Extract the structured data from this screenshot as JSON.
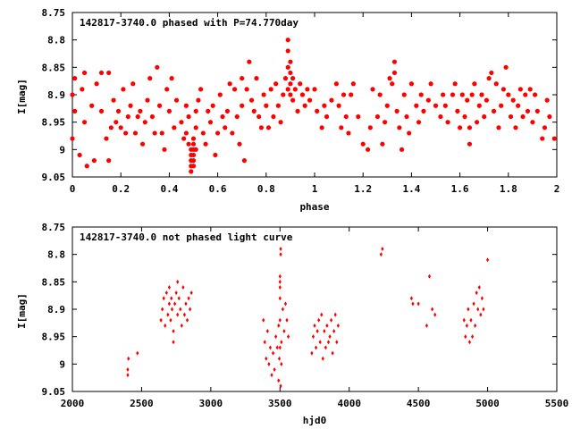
{
  "chart_data": [
    {
      "type": "scatter",
      "title": "142817-3740.0 phased with P=74.770day",
      "xlabel": "phase",
      "ylabel": "I[mag]",
      "xlim": [
        0,
        2
      ],
      "ylim": [
        9.05,
        8.75
      ],
      "y_inverted": true,
      "grid": false,
      "legend": "none",
      "marker": "filled-circle",
      "color": "#ff0000",
      "xticks": [
        0,
        0.2,
        0.4,
        0.6,
        0.8,
        1,
        1.2,
        1.4,
        1.6,
        1.8,
        2
      ],
      "xtick_labels": [
        "0",
        "0.2",
        "0.4",
        "0.6",
        "0.8",
        "1",
        "1.2",
        "1.4",
        "1.6",
        "1.8",
        "2"
      ],
      "yticks": [
        8.75,
        8.8,
        8.85,
        8.9,
        8.95,
        9,
        9.05
      ],
      "ytick_labels": [
        "8.75",
        "8.8",
        "8.85",
        "8.9",
        "8.95",
        "9",
        "9.05"
      ],
      "points": [
        [
          0.0,
          8.9
        ],
        [
          0.0,
          8.98
        ],
        [
          0.01,
          8.93
        ],
        [
          0.01,
          8.87
        ],
        [
          0.03,
          9.01
        ],
        [
          0.04,
          8.89
        ],
        [
          0.05,
          8.86
        ],
        [
          0.05,
          8.95
        ],
        [
          0.06,
          9.03
        ],
        [
          0.08,
          8.92
        ],
        [
          0.09,
          9.02
        ],
        [
          0.1,
          8.88
        ],
        [
          0.12,
          8.86
        ],
        [
          0.12,
          8.93
        ],
        [
          0.14,
          8.98
        ],
        [
          0.15,
          9.02
        ],
        [
          0.15,
          8.86
        ],
        [
          0.16,
          8.96
        ],
        [
          0.17,
          8.91
        ],
        [
          0.18,
          8.95
        ],
        [
          0.19,
          8.93
        ],
        [
          0.2,
          8.96
        ],
        [
          0.21,
          8.89
        ],
        [
          0.22,
          8.97
        ],
        [
          0.23,
          8.94
        ],
        [
          0.24,
          8.92
        ],
        [
          0.25,
          8.88
        ],
        [
          0.26,
          8.97
        ],
        [
          0.27,
          8.94
        ],
        [
          0.28,
          8.93
        ],
        [
          0.29,
          8.99
        ],
        [
          0.3,
          8.95
        ],
        [
          0.31,
          8.91
        ],
        [
          0.32,
          8.87
        ],
        [
          0.33,
          8.94
        ],
        [
          0.34,
          8.97
        ],
        [
          0.35,
          8.85
        ],
        [
          0.36,
          8.92
        ],
        [
          0.37,
          8.97
        ],
        [
          0.38,
          9.0
        ],
        [
          0.39,
          8.89
        ],
        [
          0.4,
          8.93
        ],
        [
          0.41,
          8.87
        ],
        [
          0.42,
          8.96
        ],
        [
          0.43,
          8.91
        ],
        [
          0.45,
          8.95
        ],
        [
          0.46,
          8.98
        ],
        [
          0.47,
          8.97
        ],
        [
          0.47,
          8.92
        ],
        [
          0.48,
          8.99
        ],
        [
          0.48,
          8.94
        ],
        [
          0.49,
          9.0
        ],
        [
          0.49,
          9.01
        ],
        [
          0.49,
          9.02
        ],
        [
          0.49,
          9.03
        ],
        [
          0.49,
          9.04
        ],
        [
          0.5,
          8.99
        ],
        [
          0.5,
          9.0
        ],
        [
          0.5,
          9.01
        ],
        [
          0.5,
          9.02
        ],
        [
          0.5,
          9.03
        ],
        [
          0.5,
          8.98
        ],
        [
          0.51,
          8.93
        ],
        [
          0.51,
          9.0
        ],
        [
          0.51,
          8.96
        ],
        [
          0.52,
          8.91
        ],
        [
          0.53,
          8.89
        ],
        [
          0.54,
          8.97
        ],
        [
          0.55,
          8.99
        ],
        [
          0.56,
          8.93
        ],
        [
          0.57,
          8.95
        ],
        [
          0.58,
          8.92
        ],
        [
          0.59,
          9.01
        ],
        [
          0.6,
          8.97
        ],
        [
          0.61,
          8.9
        ],
        [
          0.62,
          8.94
        ],
        [
          0.63,
          8.96
        ],
        [
          0.64,
          8.93
        ],
        [
          0.65,
          8.88
        ],
        [
          0.66,
          8.97
        ],
        [
          0.67,
          8.89
        ],
        [
          0.68,
          8.94
        ],
        [
          0.69,
          8.99
        ],
        [
          0.7,
          8.87
        ],
        [
          0.7,
          8.92
        ],
        [
          0.71,
          9.02
        ],
        [
          0.72,
          8.89
        ],
        [
          0.73,
          8.84
        ],
        [
          0.74,
          8.91
        ],
        [
          0.75,
          8.93
        ],
        [
          0.76,
          8.87
        ],
        [
          0.77,
          8.94
        ],
        [
          0.78,
          8.96
        ],
        [
          0.79,
          8.9
        ],
        [
          0.8,
          8.92
        ],
        [
          0.81,
          8.96
        ],
        [
          0.82,
          8.89
        ],
        [
          0.83,
          8.94
        ],
        [
          0.84,
          8.88
        ],
        [
          0.85,
          8.92
        ],
        [
          0.86,
          8.95
        ],
        [
          0.87,
          8.9
        ],
        [
          0.88,
          8.87
        ],
        [
          0.89,
          8.89
        ],
        [
          0.89,
          8.85
        ],
        [
          0.89,
          8.82
        ],
        [
          0.89,
          8.8
        ],
        [
          0.9,
          8.86
        ],
        [
          0.9,
          8.88
        ],
        [
          0.9,
          8.9
        ],
        [
          0.9,
          8.84
        ],
        [
          0.91,
          8.91
        ],
        [
          0.91,
          8.87
        ],
        [
          0.92,
          8.89
        ],
        [
          0.93,
          8.93
        ],
        [
          0.94,
          8.88
        ],
        [
          0.95,
          8.9
        ],
        [
          0.96,
          8.92
        ],
        [
          0.97,
          8.89
        ],
        [
          0.98,
          8.91
        ],
        [
          1.0,
          8.89
        ],
        [
          1.01,
          8.93
        ],
        [
          1.03,
          8.96
        ],
        [
          1.04,
          8.92
        ],
        [
          1.05,
          8.94
        ],
        [
          1.07,
          8.91
        ],
        [
          1.09,
          8.88
        ],
        [
          1.1,
          8.92
        ],
        [
          1.11,
          8.96
        ],
        [
          1.12,
          8.9
        ],
        [
          1.13,
          8.94
        ],
        [
          1.14,
          8.97
        ],
        [
          1.15,
          8.9
        ],
        [
          1.16,
          8.88
        ],
        [
          1.18,
          8.94
        ],
        [
          1.2,
          8.99
        ],
        [
          1.22,
          9.0
        ],
        [
          1.23,
          8.96
        ],
        [
          1.24,
          8.89
        ],
        [
          1.26,
          8.94
        ],
        [
          1.27,
          8.9
        ],
        [
          1.28,
          8.99
        ],
        [
          1.29,
          8.95
        ],
        [
          1.3,
          8.92
        ],
        [
          1.31,
          8.87
        ],
        [
          1.32,
          8.88
        ],
        [
          1.33,
          8.86
        ],
        [
          1.33,
          8.84
        ],
        [
          1.34,
          8.93
        ],
        [
          1.35,
          8.96
        ],
        [
          1.36,
          9.0
        ],
        [
          1.37,
          8.9
        ],
        [
          1.38,
          8.94
        ],
        [
          1.39,
          8.97
        ],
        [
          1.4,
          8.88
        ],
        [
          1.42,
          8.92
        ],
        [
          1.43,
          8.95
        ],
        [
          1.44,
          8.9
        ],
        [
          1.45,
          8.93
        ],
        [
          1.47,
          8.91
        ],
        [
          1.48,
          8.88
        ],
        [
          1.5,
          8.92
        ],
        [
          1.52,
          8.94
        ],
        [
          1.53,
          8.9
        ],
        [
          1.54,
          8.92
        ],
        [
          1.55,
          8.95
        ],
        [
          1.57,
          8.9
        ],
        [
          1.58,
          8.88
        ],
        [
          1.59,
          8.93
        ],
        [
          1.6,
          8.96
        ],
        [
          1.61,
          8.9
        ],
        [
          1.62,
          8.94
        ],
        [
          1.63,
          8.91
        ],
        [
          1.64,
          8.96
        ],
        [
          1.64,
          8.99
        ],
        [
          1.65,
          8.9
        ],
        [
          1.66,
          8.88
        ],
        [
          1.67,
          8.95
        ],
        [
          1.68,
          8.92
        ],
        [
          1.69,
          8.9
        ],
        [
          1.7,
          8.94
        ],
        [
          1.71,
          8.91
        ],
        [
          1.72,
          8.87
        ],
        [
          1.73,
          8.86
        ],
        [
          1.74,
          8.93
        ],
        [
          1.75,
          8.88
        ],
        [
          1.76,
          8.96
        ],
        [
          1.77,
          8.92
        ],
        [
          1.78,
          8.89
        ],
        [
          1.79,
          8.85
        ],
        [
          1.8,
          8.9
        ],
        [
          1.81,
          8.94
        ],
        [
          1.82,
          8.91
        ],
        [
          1.83,
          8.96
        ],
        [
          1.84,
          8.92
        ],
        [
          1.85,
          8.89
        ],
        [
          1.86,
          8.94
        ],
        [
          1.87,
          8.9
        ],
        [
          1.88,
          8.93
        ],
        [
          1.89,
          8.89
        ],
        [
          1.9,
          8.95
        ],
        [
          1.91,
          8.9
        ],
        [
          1.92,
          8.93
        ],
        [
          1.94,
          8.98
        ],
        [
          1.95,
          8.96
        ],
        [
          1.96,
          8.91
        ],
        [
          1.97,
          8.94
        ],
        [
          1.99,
          8.98
        ]
      ]
    },
    {
      "type": "scatter",
      "title": "142817-3740.0 not phased light curve",
      "xlabel": "hjd0",
      "ylabel": "I[mag]",
      "xlim": [
        2000,
        5500
      ],
      "ylim": [
        9.05,
        8.75
      ],
      "y_inverted": true,
      "grid": false,
      "legend": "none",
      "marker": "small-diamond",
      "color": "#ff0000",
      "xticks": [
        2000,
        2500,
        3000,
        3500,
        4000,
        4500,
        5000,
        5500
      ],
      "xtick_labels": [
        "2000",
        "2500",
        "3000",
        "3500",
        "4000",
        "4500",
        "5000",
        "5500"
      ],
      "yticks": [
        8.75,
        8.8,
        8.85,
        8.9,
        8.95,
        9,
        9.05
      ],
      "ytick_labels": [
        "8.75",
        "8.8",
        "8.85",
        "8.9",
        "8.95",
        "9",
        "9.05"
      ],
      "points": [
        [
          2400,
          9.01
        ],
        [
          2400,
          9.02
        ],
        [
          2405,
          8.99
        ],
        [
          2470,
          8.98
        ],
        [
          2640,
          8.92
        ],
        [
          2650,
          8.9
        ],
        [
          2660,
          8.88
        ],
        [
          2670,
          8.93
        ],
        [
          2680,
          8.87
        ],
        [
          2690,
          8.91
        ],
        [
          2700,
          8.86
        ],
        [
          2700,
          8.89
        ],
        [
          2710,
          8.92
        ],
        [
          2715,
          8.88
        ],
        [
          2720,
          8.9
        ],
        [
          2730,
          8.94
        ],
        [
          2740,
          8.89
        ],
        [
          2750,
          8.87
        ],
        [
          2760,
          8.91
        ],
        [
          2770,
          8.88
        ],
        [
          2780,
          8.9
        ],
        [
          2790,
          8.93
        ],
        [
          2800,
          8.86
        ],
        [
          2810,
          8.91
        ],
        [
          2820,
          8.89
        ],
        [
          2830,
          8.92
        ],
        [
          2840,
          8.88
        ],
        [
          2850,
          8.9
        ],
        [
          2860,
          8.87
        ],
        [
          2730,
          8.96
        ],
        [
          2760,
          8.85
        ],
        [
          3380,
          8.92
        ],
        [
          3390,
          8.96
        ],
        [
          3400,
          8.99
        ],
        [
          3410,
          8.94
        ],
        [
          3420,
          9.0
        ],
        [
          3430,
          8.97
        ],
        [
          3440,
          9.02
        ],
        [
          3450,
          8.98
        ],
        [
          3460,
          9.01
        ],
        [
          3470,
          8.95
        ],
        [
          3480,
          8.97
        ],
        [
          3490,
          8.93
        ],
        [
          3490,
          9.03
        ],
        [
          3500,
          8.88
        ],
        [
          3500,
          8.86
        ],
        [
          3500,
          8.85
        ],
        [
          3500,
          8.84
        ],
        [
          3500,
          8.92
        ],
        [
          3505,
          8.8
        ],
        [
          3505,
          8.79
        ],
        [
          3510,
          8.96
        ],
        [
          3510,
          9.0
        ],
        [
          3520,
          8.9
        ],
        [
          3530,
          8.94
        ],
        [
          3540,
          8.89
        ],
        [
          3550,
          8.92
        ],
        [
          3560,
          8.95
        ],
        [
          3500,
          8.97
        ],
        [
          3505,
          9.04
        ],
        [
          3495,
          8.99
        ],
        [
          3730,
          8.98
        ],
        [
          3740,
          8.95
        ],
        [
          3750,
          8.93
        ],
        [
          3760,
          8.97
        ],
        [
          3770,
          8.94
        ],
        [
          3780,
          8.92
        ],
        [
          3790,
          8.96
        ],
        [
          3800,
          8.91
        ],
        [
          3810,
          8.99
        ],
        [
          3820,
          8.94
        ],
        [
          3830,
          8.97
        ],
        [
          3840,
          8.93
        ],
        [
          3850,
          8.96
        ],
        [
          3860,
          8.95
        ],
        [
          3870,
          8.92
        ],
        [
          3880,
          8.98
        ],
        [
          3890,
          8.94
        ],
        [
          3900,
          8.91
        ],
        [
          3910,
          8.96
        ],
        [
          3920,
          8.93
        ],
        [
          4230,
          8.8
        ],
        [
          4240,
          8.79
        ],
        [
          4450,
          8.88
        ],
        [
          4460,
          8.89
        ],
        [
          4500,
          8.89
        ],
        [
          4560,
          8.93
        ],
        [
          4580,
          8.84
        ],
        [
          4600,
          8.9
        ],
        [
          4620,
          8.91
        ],
        [
          4830,
          8.92
        ],
        [
          4840,
          8.95
        ],
        [
          4850,
          8.93
        ],
        [
          4860,
          8.9
        ],
        [
          4870,
          8.96
        ],
        [
          4880,
          8.92
        ],
        [
          4890,
          8.95
        ],
        [
          4900,
          8.89
        ],
        [
          4910,
          8.93
        ],
        [
          4920,
          8.87
        ],
        [
          4930,
          8.9
        ],
        [
          4940,
          8.86
        ],
        [
          4950,
          8.91
        ],
        [
          4960,
          8.88
        ],
        [
          4970,
          8.9
        ],
        [
          5000,
          8.81
        ]
      ]
    }
  ]
}
